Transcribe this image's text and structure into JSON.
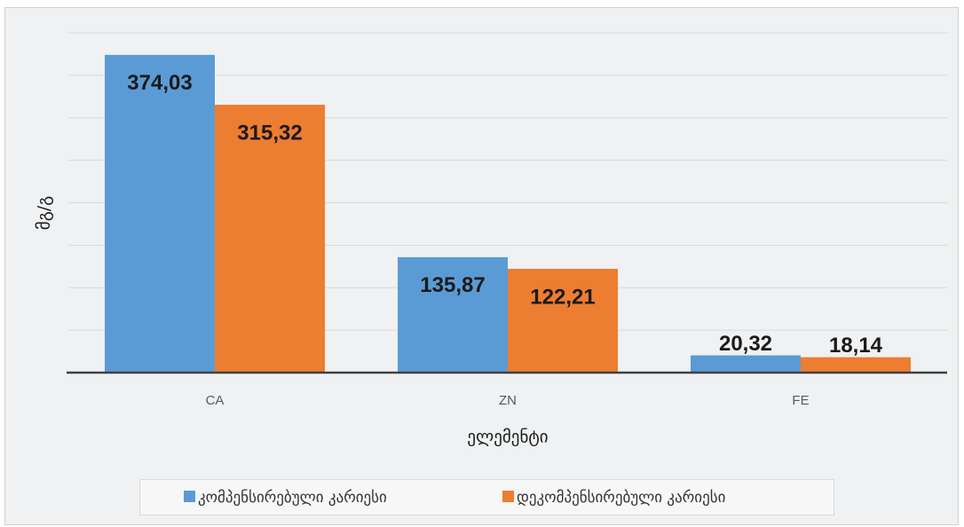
{
  "chart_data": {
    "type": "bar",
    "x_label": "ელემენტი",
    "y_label": "მგ/გ",
    "categories": [
      "CA",
      "ZN",
      "FE"
    ],
    "series": [
      {
        "name": "კომპენსირებული კარიესი",
        "color": "#5b9bd5",
        "values": [
          374.03,
          135.87,
          20.32
        ],
        "value_labels": [
          "374,03",
          "135,87",
          "20,32"
        ]
      },
      {
        "name": "დეკომპენსირებული კარიესი",
        "color": "#ed7d31",
        "values": [
          315.32,
          122.21,
          18.14
        ],
        "value_labels": [
          "315,32",
          "122,21",
          "18,14"
        ]
      }
    ],
    "ylim": [
      0,
      400
    ],
    "yticks": [
      0,
      50,
      100,
      150,
      200,
      250,
      300,
      350,
      400
    ],
    "grid": true,
    "legend": "bottom"
  }
}
